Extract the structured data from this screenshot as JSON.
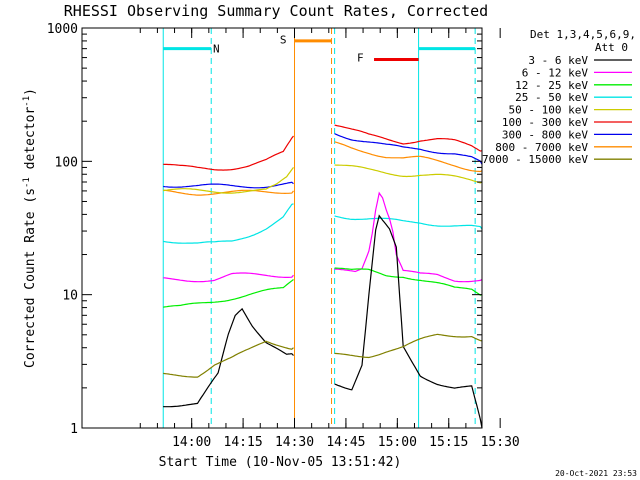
{
  "chart_data": {
    "type": "line",
    "title": "RHESSI Observing Summary Count Rates, Corrected",
    "xlabel": "Start Time (10-Nov-05 13:51:42)",
    "ylabel": "Corrected Count Rate (s",
    "ylabel_sup1": "-1",
    "ylabel_mid": " detector",
    "ylabel_sup2": "-1",
    "ylabel_end": ")",
    "y_scale": "log",
    "ylim": [
      1,
      1000
    ],
    "y_ticks": [
      1,
      10,
      100,
      1000
    ],
    "y_tick_labels": [
      "1",
      "10",
      "100",
      "1000"
    ],
    "x_range_minutes": [
      -23.7,
      93.0
    ],
    "x_ticks": [
      8.3,
      23.3,
      38.3,
      53.3,
      68.3,
      83.3,
      98.3
    ],
    "x_tick_labels": [
      "14:00",
      "14:15",
      "14:30",
      "14:45",
      "15:00",
      "15:15",
      "15:30"
    ],
    "legend": {
      "header1": "Det 1,3,4,5,6,9,",
      "header2": "Att 0",
      "placement": "right",
      "entries": [
        {
          "label": "3 - 6 keV",
          "color": "#000000"
        },
        {
          "label": "6 - 12 keV",
          "color": "#ff00ff"
        },
        {
          "label": "12 - 25 keV",
          "color": "#00ee00"
        },
        {
          "label": "25 - 50 keV",
          "color": "#00e5e5"
        },
        {
          "label": "50 - 100 keV",
          "color": "#cccc00"
        },
        {
          "label": "100 - 300 keV",
          "color": "#ee0000"
        },
        {
          "label": "300 - 800 keV",
          "color": "#0000ee"
        },
        {
          "label": "800 - 7000 keV",
          "color": "#ff8c00"
        },
        {
          "label": "7000 - 15000 keV",
          "color": "#808000"
        }
      ]
    },
    "segments": [
      {
        "x_start": 9,
        "x_end": 9.0
      },
      {
        "x_start": 9,
        "x_end": 9.1
      }
    ],
    "series": [
      {
        "color": "#ee0000",
        "segments": [
          {
            "x": [
              0,
              5,
              10,
              15,
              20,
              25,
              30,
              35,
              38
            ],
            "y": [
              95,
              90,
              88,
              88,
              90,
              93,
              100,
              115,
              155
            ]
          },
          {
            "x": [
              50,
              55,
              60,
              65,
              70,
              75,
              80,
              85,
              90,
              93
            ],
            "y": [
              190,
              170,
              155,
              148,
              140,
              145,
              145,
              140,
              130,
              120
            ]
          }
        ]
      },
      {
        "color": "#0000ee",
        "segments": [
          {
            "x": [
              0,
              10,
              20,
              30,
              38
            ],
            "y": [
              67,
              65,
              65,
              66,
              68
            ]
          },
          {
            "x": [
              50,
              55,
              60,
              65,
              70,
              75,
              80,
              85,
              90,
              93
            ],
            "y": [
              165,
              150,
              140,
              130,
              125,
              125,
              120,
              115,
              105,
              95
            ]
          }
        ]
      },
      {
        "color": "#ff8c00",
        "segments": [
          {
            "x": [
              0,
              10,
              20,
              30,
              38
            ],
            "y": [
              59,
              58,
              58,
              59,
              60
            ]
          },
          {
            "x": [
              50,
              55,
              60,
              65,
              70,
              75,
              80,
              85,
              90,
              93
            ],
            "y": [
              135,
              125,
              118,
              110,
              105,
              105,
              100,
              95,
              88,
              85
            ]
          }
        ]
      },
      {
        "color": "#cccc00",
        "segments": [
          {
            "x": [
              0,
              10,
              20,
              30,
              33,
              36,
              38
            ],
            "y": [
              60,
              60,
              60,
              60,
              65,
              75,
              90
            ]
          },
          {
            "x": [
              50,
              55,
              60,
              65,
              70,
              75,
              80,
              85,
              90,
              93
            ],
            "y": [
              95,
              90,
              85,
              82,
              80,
              80,
              78,
              75,
              72,
              70
            ]
          }
        ]
      },
      {
        "color": "#00e5e5",
        "segments": [
          {
            "x": [
              0,
              5,
              10,
              15,
              20,
              25,
              30,
              35,
              38
            ],
            "y": [
              26,
              25,
              24,
              24,
              25,
              28,
              32,
              38,
              48
            ]
          },
          {
            "x": [
              50,
              55,
              60,
              65,
              70,
              75,
              80,
              85,
              90,
              93
            ],
            "y": [
              40,
              38,
              37,
              36,
              35,
              35,
              34,
              33,
              32,
              31
            ]
          }
        ]
      },
      {
        "color": "#ff00ff",
        "segments": [
          {
            "x": [
              0,
              5,
              10,
              15,
              20,
              25,
              30,
              35,
              38
            ],
            "y": [
              13,
              13,
              13,
              13,
              14,
              14,
              14,
              14,
              14
            ]
          },
          {
            "x": [
              50,
              52,
              54,
              56,
              58,
              60,
              61,
              62,
              63,
              64,
              65,
              66,
              67,
              68,
              70,
              75,
              80,
              85,
              90,
              93
            ],
            "y": [
              15,
              15,
              15,
              15,
              16,
              22,
              30,
              45,
              60,
              55,
              45,
              38,
              30,
              20,
              15,
              14,
              14,
              13,
              13,
              13
            ]
          }
        ]
      },
      {
        "color": "#00ee00",
        "segments": [
          {
            "x": [
              0,
              5,
              10,
              15,
              20,
              25,
              30,
              35,
              38
            ],
            "y": [
              8,
              8,
              8.5,
              9,
              9.5,
              10,
              10.5,
              11,
              13
            ]
          },
          {
            "x": [
              50,
              55,
              60,
              65,
              70,
              75,
              80,
              85,
              90,
              93
            ],
            "y": [
              16,
              15,
              15,
              14,
              14,
              13,
              12,
              11,
              11,
              10
            ]
          }
        ]
      },
      {
        "color": "#000000",
        "segments": [
          {
            "x": [
              0,
              10,
              16,
              19,
              21,
              23,
              26,
              30,
              33,
              36,
              38
            ],
            "y": [
              1.5,
              1.5,
              2.5,
              5,
              7,
              8,
              6,
              4.5,
              4,
              3.5,
              3.5
            ]
          },
          {
            "x": [
              50,
              55,
              58,
              60,
              62,
              63,
              64,
              66,
              68,
              70,
              75,
              80,
              85,
              90,
              93
            ],
            "y": [
              2.2,
              2.0,
              3,
              10,
              30,
              38,
              35,
              30,
              22,
              4,
              2.5,
              2.2,
              2.0,
              2.0,
              1.0
            ]
          }
        ]
      },
      {
        "color": "#808000",
        "segments": [
          {
            "x": [
              0,
              5,
              10,
              15,
              20,
              25,
              30,
              35,
              38
            ],
            "y": [
              2.5,
              2.5,
              2.5,
              3,
              3.3,
              3.8,
              4.5,
              4.2,
              4.0
            ]
          },
          {
            "x": [
              50,
              55,
              60,
              65,
              70,
              75,
              80,
              85,
              90,
              93
            ],
            "y": [
              3.5,
              3.5,
              3.5,
              3.8,
              4.0,
              4.5,
              5,
              5,
              5,
              4.5
            ]
          }
        ]
      }
    ],
    "annotations": {
      "vertical_lines": [
        {
          "x": 0,
          "color": "#00e5e5",
          "dash": false
        },
        {
          "x": 14,
          "color": "#00e5e5",
          "dash": true
        },
        {
          "x": 38.3,
          "color": "#ff8c00",
          "dash": false
        },
        {
          "x": 49.1,
          "color": "#ff8c00",
          "dash": true
        },
        {
          "x": 50.0,
          "color": "#00e5e5",
          "dash": true
        },
        {
          "x": 74.5,
          "color": "#00e5e5",
          "dash": false
        },
        {
          "x": 91.0,
          "color": "#00e5e5",
          "dash": true
        }
      ],
      "bars": [
        {
          "x1": 0,
          "x2": 14,
          "y": 700,
          "color": "#00e5e5"
        },
        {
          "x1": 38.3,
          "x2": 49.1,
          "y": 800,
          "color": "#ff8c00"
        },
        {
          "x1": 74.5,
          "x2": 91.0,
          "y": 700,
          "color": "#00e5e5"
        },
        {
          "x1": 61.5,
          "x2": 74.5,
          "y": 580,
          "color": "#ee0000"
        }
      ],
      "labels": [
        {
          "text": "N",
          "x": 15.5,
          "y": 700,
          "color": "#00e5e5"
        },
        {
          "text": "S",
          "x": 35.0,
          "y": 820,
          "color": "#ff8c00"
        },
        {
          "text": "F",
          "x": 57.5,
          "y": 600,
          "color": "#ee0000"
        }
      ]
    },
    "footer": "20-Oct-2021 23:53"
  }
}
